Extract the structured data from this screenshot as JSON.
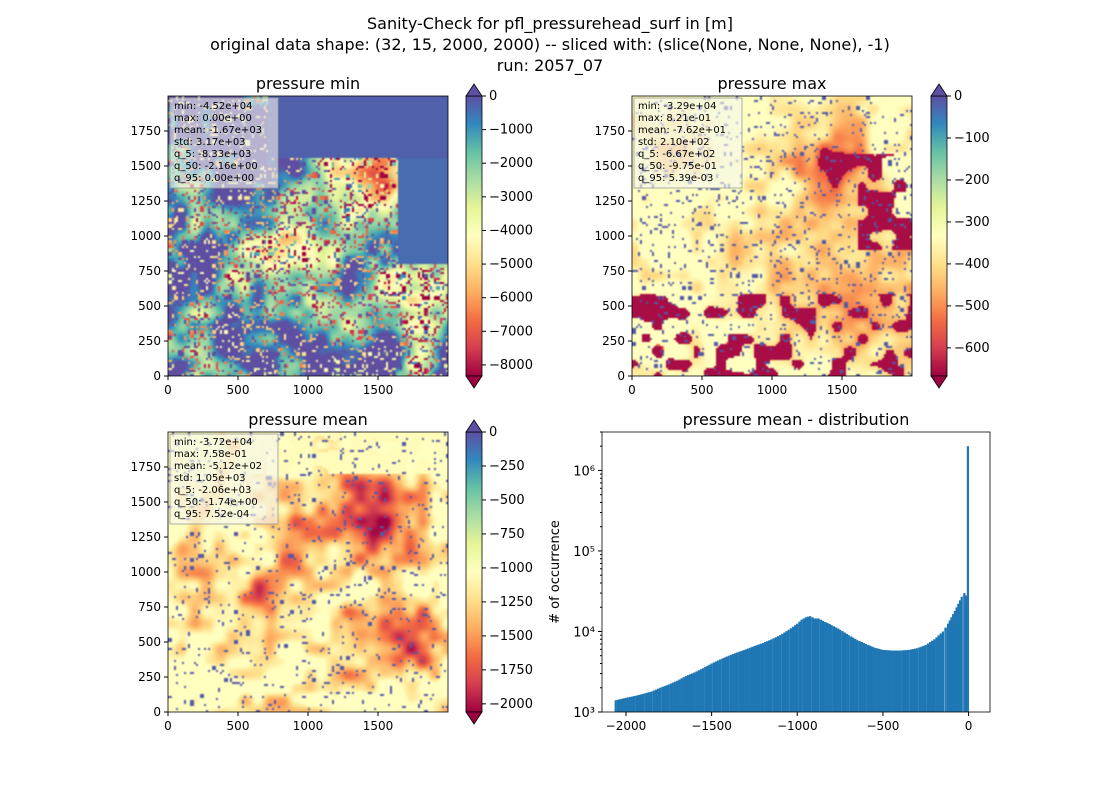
{
  "figure": {
    "title_lines": [
      "Sanity-Check for pfl_pressurehead_surf in [m]",
      "original data shape: (32, 15, 2000, 2000) -- sliced with: (slice(None, None, None), -1)",
      "run: 2057_07"
    ]
  },
  "colormap": {
    "name": "Spectral",
    "stops": [
      "#9e0142",
      "#d53e4f",
      "#f46d43",
      "#fdae61",
      "#fee08b",
      "#ffffbf",
      "#e6f598",
      "#abdda4",
      "#66c2a5",
      "#3288bd",
      "#5e4fa2"
    ]
  },
  "chart_data": [
    {
      "type": "heatmap",
      "title": "pressure min",
      "x_ticks": [
        0,
        500,
        1000,
        1500
      ],
      "y_ticks": [
        0,
        250,
        500,
        750,
        1000,
        1250,
        1500,
        1750
      ],
      "x_range": [
        0,
        2000
      ],
      "y_range": [
        0,
        2000
      ],
      "colorbar": {
        "vmin": -8330,
        "vmax": 0,
        "ticks": [
          0,
          -1000,
          -2000,
          -3000,
          -4000,
          -5000,
          -6000,
          -7000,
          -8000
        ],
        "extend": "both"
      },
      "stats": [
        "min: -4.52e+04",
        "max: 0.00e+00",
        "mean: -1.67e+03",
        "std: 3.17e+03",
        "q_5: -8.33e+03",
        "q_50: -2.16e+00",
        "q_95: 0.00e+00"
      ]
    },
    {
      "type": "heatmap",
      "title": "pressure max",
      "x_ticks": [
        0,
        500,
        1000,
        1500
      ],
      "y_ticks": [
        0,
        250,
        500,
        750,
        1000,
        1250,
        1500,
        1750
      ],
      "x_range": [
        0,
        2000
      ],
      "y_range": [
        0,
        2000
      ],
      "colorbar": {
        "vmin": -667,
        "vmax": 0.0054,
        "ticks": [
          0,
          -100,
          -200,
          -300,
          -400,
          -500,
          -600
        ],
        "extend": "both"
      },
      "stats": [
        "min: -3.29e+04",
        "max: 8.21e-01",
        "mean: -7.62e+01",
        "std: 2.10e+02",
        "q_5: -6.67e+02",
        "q_50: -9.75e-01",
        "q_95: 5.39e-03"
      ]
    },
    {
      "type": "heatmap",
      "title": "pressure mean",
      "x_ticks": [
        0,
        500,
        1000,
        1500
      ],
      "y_ticks": [
        0,
        250,
        500,
        750,
        1000,
        1250,
        1500,
        1750
      ],
      "x_range": [
        0,
        2000
      ],
      "y_range": [
        0,
        2000
      ],
      "colorbar": {
        "vmin": -2060,
        "vmax": 0.00075,
        "ticks": [
          0,
          -250,
          -500,
          -750,
          -1000,
          -1250,
          -1500,
          -1750,
          -2000
        ],
        "extend": "both"
      },
      "stats": [
        "min: -3.72e+04",
        "max: 7.58e-01",
        "mean: -5.12e+02",
        "std: 1.05e+03",
        "q_5: -2.06e+03",
        "q_50: -1.74e+00",
        "q_95: 7.52e-04"
      ]
    },
    {
      "type": "bar",
      "subtype": "histogram",
      "title": "pressure mean - distribution",
      "ylabel": "# of occurrence",
      "y_scale": "log",
      "xlim": [
        -2140,
        125
      ],
      "ylim": [
        1000,
        3000000
      ],
      "x_ticks": [
        -2000,
        -1500,
        -1000,
        -500,
        0
      ],
      "y_ticks": [
        1000,
        10000,
        100000,
        1000000
      ],
      "y_tick_labels": [
        "10³",
        "10⁴",
        "10⁵",
        "10⁶"
      ],
      "bar_color": "#1f77b4",
      "bin_width": 13,
      "x": [
        -2060,
        -2000,
        -1950,
        -1900,
        -1850,
        -1800,
        -1750,
        -1700,
        -1650,
        -1600,
        -1550,
        -1500,
        -1450,
        -1400,
        -1350,
        -1300,
        -1250,
        -1200,
        -1150,
        -1100,
        -1050,
        -1000,
        -975,
        -950,
        -925,
        -900,
        -875,
        -850,
        -800,
        -750,
        -700,
        -650,
        -600,
        -550,
        -500,
        -450,
        -400,
        -350,
        -300,
        -250,
        -200,
        -150,
        -120,
        -100,
        -80,
        -60,
        -40,
        -25,
        -15,
        -8,
        -4
      ],
      "values": [
        1400,
        1500,
        1580,
        1680,
        1800,
        2000,
        2200,
        2450,
        2800,
        3100,
        3500,
        4000,
        4500,
        5000,
        5500,
        6000,
        6600,
        7200,
        8000,
        9000,
        10500,
        12500,
        14000,
        15000,
        15500,
        14500,
        14500,
        13500,
        12000,
        10500,
        9000,
        7800,
        7000,
        6300,
        5900,
        5800,
        5800,
        5900,
        6200,
        6800,
        8000,
        10000,
        12500,
        15000,
        18000,
        22000,
        27000,
        30000,
        28000,
        24000,
        2000000
      ]
    }
  ]
}
